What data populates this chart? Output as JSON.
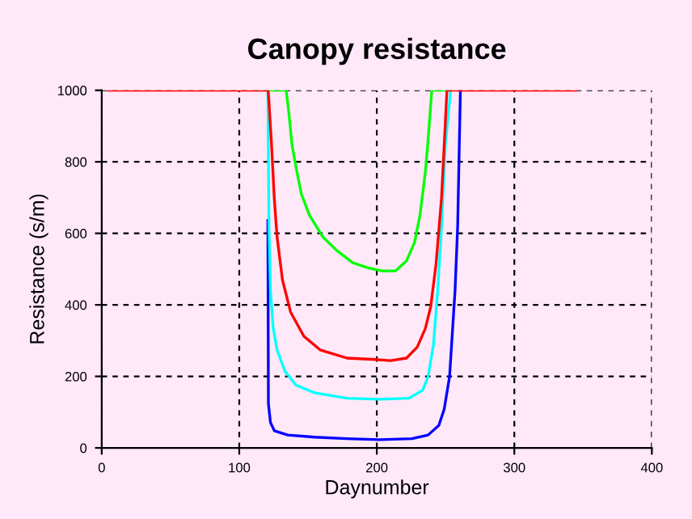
{
  "chart_data": {
    "type": "line",
    "title": "Canopy resistance",
    "xlabel": "Daynumber",
    "ylabel": "Resistance (s/m)",
    "xlim": [
      0,
      400
    ],
    "xticks": [
      0,
      100,
      200,
      300,
      400
    ],
    "ylim": [
      0,
      1000
    ],
    "yticks": [
      0,
      200,
      400,
      600,
      800,
      1000
    ],
    "grid": true,
    "legend": false,
    "marker": "none",
    "line_style": "solid",
    "series": [
      {
        "color": "#0000ff",
        "x": [
          120.8,
          121.2,
          122.7,
          125.5,
          135.3,
          154.9,
          178.4,
          202,
          225.5,
          237.3,
          245.1,
          249,
          252.9,
          256.9,
          258.8,
          260.8
        ],
        "values": [
          636,
          123,
          71,
          48,
          36,
          30,
          26,
          23,
          26,
          36,
          63,
          108,
          199,
          440,
          620,
          1000
        ]
      },
      {
        "color": "#00ffff",
        "x": [
          120.8,
          121.6,
          122.7,
          124.7,
          127.5,
          133.3,
          141.2,
          154.9,
          178.4,
          202,
          223.5,
          233.3,
          237.3,
          241.2,
          244.3,
          247.1,
          249.8,
          253.7
        ],
        "values": [
          1000,
          620,
          440,
          334,
          274,
          214,
          176,
          154,
          139,
          136,
          139,
          161,
          199,
          289,
          440,
          620,
          846,
          1000
        ]
      },
      {
        "color": "#00ff00",
        "x": [
          121,
          134.1,
          136.1,
          138.4,
          141.2,
          145.1,
          151,
          160.8,
          170.6,
          182.4,
          194.1,
          203.9,
          213.7,
          221.6,
          227.5,
          231.4,
          235.3,
          237.3,
          240,
          251
        ],
        "values": [
          1000,
          1000,
          936,
          846,
          786,
          711,
          651,
          590,
          553,
          518,
          503,
          495,
          495,
          523,
          575,
          651,
          771,
          861,
          1000,
          1000
        ]
      },
      {
        "color": "#ff0000",
        "x": [
          5,
          121,
          121.6,
          123.5,
          125.5,
          127.5,
          131.4,
          137.3,
          147,
          158.8,
          178.4,
          200,
          209.8,
          221.6,
          229.4,
          235.3,
          239.2,
          243.1,
          247,
          249,
          251,
          345
        ],
        "values": [
          1000,
          1000,
          967,
          846,
          696,
          590,
          470,
          380,
          312,
          274,
          251,
          247,
          244,
          251,
          282,
          334,
          395,
          515,
          696,
          846,
          1000,
          1000
        ]
      }
    ]
  }
}
